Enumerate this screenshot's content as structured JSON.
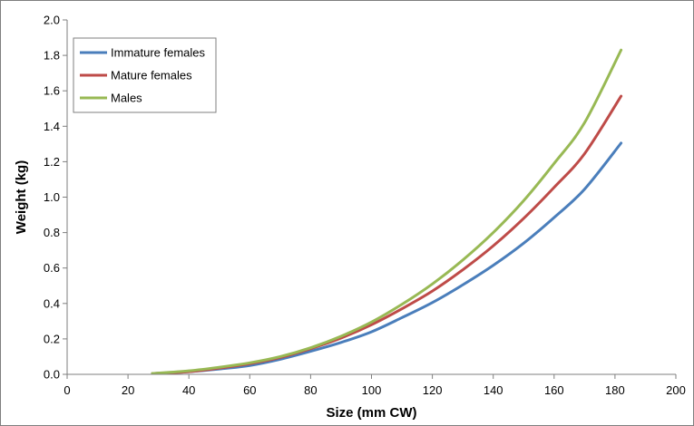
{
  "chart_data": {
    "type": "line",
    "title": "",
    "xlabel": "Size (mm CW)",
    "ylabel": "Weight (kg)",
    "xlim": [
      0,
      200
    ],
    "ylim": [
      0,
      2.0
    ],
    "x_ticks": [
      "0",
      "20",
      "40",
      "60",
      "80",
      "100",
      "120",
      "140",
      "160",
      "180",
      "200"
    ],
    "y_ticks": [
      "0.0",
      "0.2",
      "0.4",
      "0.6",
      "0.8",
      "1.0",
      "1.2",
      "1.4",
      "1.6",
      "1.8",
      "2.0"
    ],
    "grid": false,
    "legend_position": "top-left",
    "series": [
      {
        "name": "Immature females",
        "color": "#4a7ebb",
        "x": [
          28,
          40,
          50,
          60,
          70,
          80,
          90,
          100,
          110,
          120,
          130,
          140,
          150,
          160,
          170,
          182
        ],
        "y": [
          0.005,
          0.015,
          0.03,
          0.05,
          0.085,
          0.13,
          0.18,
          0.24,
          0.32,
          0.405,
          0.505,
          0.615,
          0.74,
          0.885,
          1.045,
          1.305
        ]
      },
      {
        "name": "Mature females",
        "color": "#be4b48",
        "x": [
          28,
          40,
          50,
          60,
          70,
          80,
          90,
          100,
          110,
          120,
          130,
          140,
          150,
          160,
          170,
          182
        ],
        "y": [
          0.005,
          0.015,
          0.035,
          0.06,
          0.095,
          0.145,
          0.205,
          0.28,
          0.37,
          0.47,
          0.59,
          0.725,
          0.88,
          1.055,
          1.245,
          1.57
        ]
      },
      {
        "name": "Males",
        "color": "#98b954",
        "x": [
          28,
          40,
          50,
          60,
          70,
          80,
          90,
          100,
          110,
          120,
          130,
          140,
          150,
          160,
          170,
          182
        ],
        "y": [
          0.005,
          0.02,
          0.04,
          0.065,
          0.1,
          0.15,
          0.215,
          0.295,
          0.395,
          0.51,
          0.645,
          0.8,
          0.98,
          1.19,
          1.42,
          1.83
        ]
      }
    ]
  }
}
